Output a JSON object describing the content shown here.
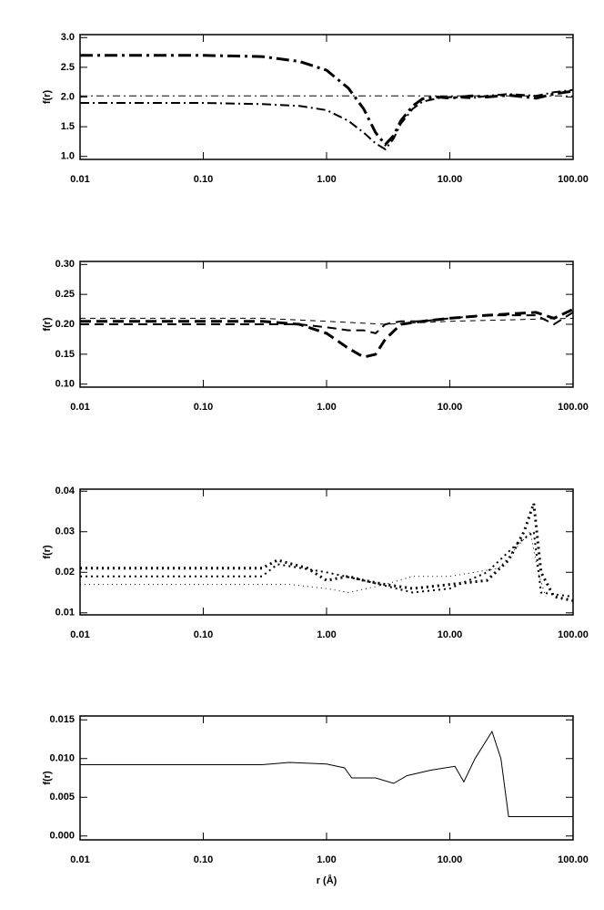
{
  "chart_data": [
    {
      "type": "line",
      "ylabel": "f(r)",
      "xlog": true,
      "xlim": [
        0.01,
        100
      ],
      "ylim": [
        0.95,
        3.05
      ],
      "xticks": [
        {
          "value": 0.01,
          "label": "0.01"
        },
        {
          "value": 0.1,
          "label": "0.10"
        },
        {
          "value": 1,
          "label": "1.00"
        },
        {
          "value": 10,
          "label": "10.00"
        },
        {
          "value": 100,
          "label": "100.00"
        }
      ],
      "yticks": [
        {
          "value": 1.0,
          "label": "1.0"
        },
        1.5,
        {
          "value": 2.0,
          "label": "2.0"
        },
        2.5,
        {
          "value": 3.0,
          "label": "3.0"
        }
      ],
      "series": [
        {
          "color": "#000000",
          "dash": "14 5 3 5",
          "width": 3,
          "x": [
            0.01,
            0.1,
            0.3,
            0.6,
            1,
            1.5,
            2,
            2.5,
            3,
            3.5,
            4,
            5,
            6,
            8,
            10,
            15,
            20,
            30,
            50,
            70,
            100
          ],
          "values": [
            2.7,
            2.7,
            2.68,
            2.6,
            2.45,
            2.15,
            1.8,
            1.4,
            1.2,
            1.35,
            1.6,
            1.85,
            1.97,
            2.0,
            1.98,
            2.02,
            2.0,
            2.03,
            1.98,
            2.05,
            2.1
          ]
        },
        {
          "color": "#000000",
          "dash": "10 4 2 4",
          "width": 2,
          "x": [
            0.01,
            0.1,
            0.3,
            0.6,
            1,
            1.5,
            2,
            2.5,
            3,
            3.5,
            4,
            5,
            6,
            8,
            10,
            15,
            20,
            30,
            50,
            70,
            100
          ],
          "values": [
            1.9,
            1.9,
            1.88,
            1.85,
            1.78,
            1.6,
            1.4,
            1.22,
            1.12,
            1.3,
            1.55,
            1.8,
            1.92,
            1.98,
            2.0,
            1.98,
            2.02,
            2.05,
            2.02,
            2.08,
            2.12
          ]
        },
        {
          "color": "#000000",
          "dash": "8 4 2 4",
          "width": 1,
          "x": [
            0.01,
            1,
            10,
            100
          ],
          "values": [
            2.02,
            2.02,
            2.02,
            2.02
          ]
        }
      ]
    },
    {
      "type": "line",
      "ylabel": "f(r)",
      "xlog": true,
      "xlim": [
        0.01,
        100
      ],
      "ylim": [
        0.095,
        0.305
      ],
      "xticks": [
        {
          "value": 0.01,
          "label": "0.01"
        },
        {
          "value": 0.1,
          "label": "0.10"
        },
        {
          "value": 1,
          "label": "1.00"
        },
        {
          "value": 10,
          "label": "10.00"
        },
        {
          "value": 100,
          "label": "100.00"
        }
      ],
      "yticks": [
        {
          "value": 0.1,
          "label": "0.10"
        },
        0.15,
        {
          "value": 0.2,
          "label": "0.20"
        },
        0.25,
        {
          "value": 0.3,
          "label": "0.30"
        }
      ],
      "series": [
        {
          "color": "#000000",
          "dash": "12 6",
          "width": 3,
          "x": [
            0.01,
            0.1,
            0.3,
            0.6,
            1,
            1.5,
            2,
            2.5,
            3,
            4,
            6,
            10,
            20,
            50,
            70,
            100
          ],
          "values": [
            0.205,
            0.205,
            0.205,
            0.2,
            0.185,
            0.16,
            0.145,
            0.15,
            0.175,
            0.2,
            0.205,
            0.21,
            0.215,
            0.22,
            0.21,
            0.225
          ]
        },
        {
          "color": "#000000",
          "dash": "10 6",
          "width": 2,
          "x": [
            0.01,
            0.1,
            0.3,
            0.6,
            1,
            1.5,
            2,
            2.5,
            3,
            4,
            6,
            10,
            20,
            50,
            70,
            100
          ],
          "values": [
            0.2,
            0.2,
            0.2,
            0.2,
            0.195,
            0.19,
            0.19,
            0.185,
            0.2,
            0.205,
            0.205,
            0.21,
            0.215,
            0.215,
            0.2,
            0.22
          ]
        },
        {
          "color": "#000000",
          "dash": "6 5",
          "width": 1,
          "x": [
            0.01,
            0.3,
            1,
            3,
            10,
            100
          ],
          "values": [
            0.21,
            0.21,
            0.205,
            0.2,
            0.205,
            0.21
          ]
        }
      ]
    },
    {
      "type": "line",
      "ylabel": "f(r)",
      "xlog": true,
      "xlim": [
        0.01,
        100
      ],
      "ylim": [
        0.0095,
        0.0405
      ],
      "xticks": [
        {
          "value": 0.01,
          "label": "0.01"
        },
        {
          "value": 0.1,
          "label": "0.10"
        },
        {
          "value": 1,
          "label": "1.00"
        },
        {
          "value": 10,
          "label": "10.00"
        },
        {
          "value": 100,
          "label": "100.00"
        }
      ],
      "yticks": [
        0.01,
        0.02,
        0.03,
        0.04
      ],
      "series": [
        {
          "color": "#000000",
          "dash": "2 4",
          "width": 3,
          "x": [
            0.01,
            0.1,
            0.3,
            0.4,
            0.7,
            1,
            1.5,
            2,
            3,
            5,
            10,
            20,
            30,
            40,
            48,
            55,
            70,
            100
          ],
          "values": [
            0.021,
            0.021,
            0.021,
            0.023,
            0.021,
            0.018,
            0.019,
            0.018,
            0.017,
            0.016,
            0.017,
            0.018,
            0.023,
            0.03,
            0.037,
            0.02,
            0.014,
            0.013
          ]
        },
        {
          "color": "#000000",
          "dash": "2 4",
          "width": 2,
          "x": [
            0.01,
            0.1,
            0.3,
            0.4,
            1,
            2,
            5,
            10,
            20,
            35,
            48,
            55,
            100
          ],
          "values": [
            0.019,
            0.019,
            0.019,
            0.022,
            0.02,
            0.018,
            0.015,
            0.016,
            0.02,
            0.027,
            0.03,
            0.015,
            0.014
          ]
        },
        {
          "color": "#000000",
          "dash": "1 4",
          "width": 1,
          "x": [
            0.01,
            0.1,
            0.5,
            1,
            1.5,
            3,
            5,
            10,
            25,
            45,
            52,
            60
          ],
          "values": [
            0.017,
            0.017,
            0.017,
            0.016,
            0.015,
            0.017,
            0.019,
            0.019,
            0.021,
            0.03,
            0.02,
            0.014
          ]
        }
      ]
    },
    {
      "type": "line",
      "ylabel": "f(r)",
      "xlabel": "r (Å)",
      "xlog": true,
      "xlim": [
        0.01,
        100
      ],
      "ylim": [
        -0.0005,
        0.0155
      ],
      "xticks": [
        {
          "value": 0.01,
          "label": "0.01"
        },
        {
          "value": 0.1,
          "label": "0.10"
        },
        {
          "value": 1,
          "label": "1.00"
        },
        {
          "value": 10,
          "label": "10.00"
        },
        {
          "value": 100,
          "label": "100.00"
        }
      ],
      "yticks": [
        {
          "value": 0,
          "label": "0.000"
        },
        {
          "value": 0.005,
          "label": "0.005"
        },
        {
          "value": 0.01,
          "label": "0.010"
        },
        {
          "value": 0.015,
          "label": "0.015"
        }
      ],
      "series": [
        {
          "color": "#000000",
          "dash": "none",
          "width": 1,
          "x": [
            0.01,
            0.3,
            0.5,
            1,
            1.4,
            1.6,
            2.5,
            3.5,
            4.5,
            7,
            11,
            13,
            16,
            22,
            26,
            30,
            100
          ],
          "values": [
            0.0092,
            0.0092,
            0.0095,
            0.0093,
            0.0088,
            0.0075,
            0.0075,
            0.0068,
            0.0078,
            0.0085,
            0.009,
            0.007,
            0.01,
            0.0135,
            0.01,
            0.0025,
            0.0025
          ]
        }
      ]
    }
  ]
}
